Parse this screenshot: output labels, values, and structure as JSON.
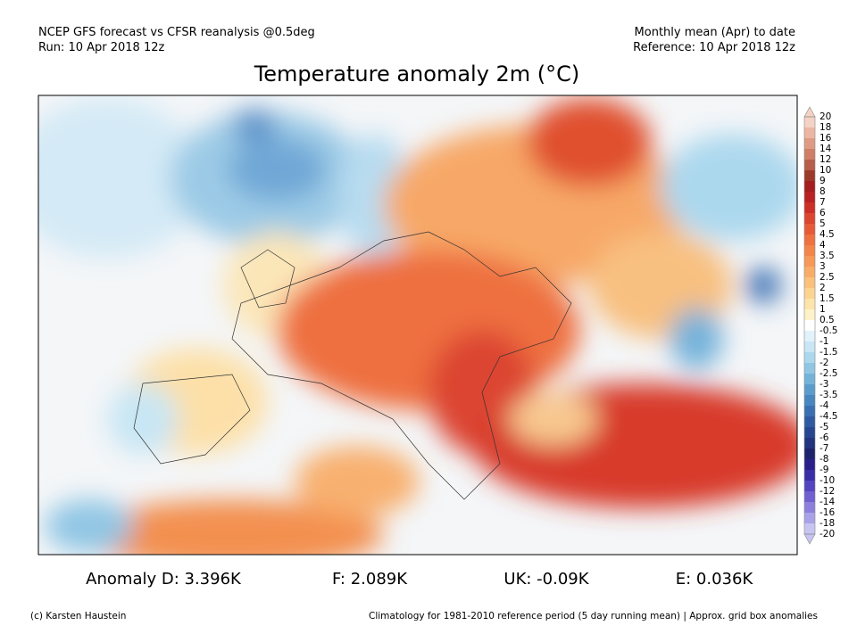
{
  "header": {
    "left_line1": "NCEP GFS forecast vs CFSR reanalysis @0.5deg",
    "left_line2": "Run: 10 Apr 2018 12z",
    "right_line1": "Monthly mean (Apr) to date",
    "right_line2": "Reference: 10 Apr 2018 12z",
    "title": "Temperature anomaly 2m (°C)"
  },
  "colorbar": {
    "labels": [
      "20",
      "18",
      "16",
      "14",
      "12",
      "10",
      "9",
      "8",
      "7",
      "6",
      "5",
      "4.5",
      "4",
      "3.5",
      "3",
      "2.5",
      "2",
      "1.5",
      "1",
      "0.5",
      "-0.5",
      "-1",
      "-1.5",
      "-2",
      "-2.5",
      "-3",
      "-3.5",
      "-4",
      "-4.5",
      "-5",
      "-6",
      "-7",
      "-8",
      "-9",
      "-10",
      "-12",
      "-14",
      "-16",
      "-18",
      "-20"
    ],
    "colors": [
      "#f4d2c4",
      "#ebb6a2",
      "#df9a84",
      "#cf7e68",
      "#b85e4c",
      "#9c3a2a",
      "#a51d1d",
      "#b82222",
      "#cc2f26",
      "#dc4530",
      "#e65a38",
      "#ef7040",
      "#f3844a",
      "#f69858",
      "#f8ac68",
      "#fac07c",
      "#fcd492",
      "#fde4aa",
      "#fef2c8",
      "#ffffff",
      "#e2f2fa",
      "#c8e6f4",
      "#acd8ee",
      "#90c6e4",
      "#74b2da",
      "#5c9ccd",
      "#4886c0",
      "#3a70b2",
      "#2f5aa2",
      "#274690",
      "#22347e",
      "#1e236c",
      "#2a1f8a",
      "#3a2ea6",
      "#5544c0",
      "#7060d0",
      "#8c80dc",
      "#aaa2e8",
      "#c8c4f2"
    ]
  },
  "anomalies": [
    "Anomaly D: 3.396K",
    "F: 2.089K",
    "UK: -0.09K",
    "E: 0.036K"
  ],
  "footer": {
    "left": "(c) Karsten Haustein",
    "right": "Climatology for 1981-2010 reference period (5 day running mean) | Approx. grid box anomalies"
  }
}
